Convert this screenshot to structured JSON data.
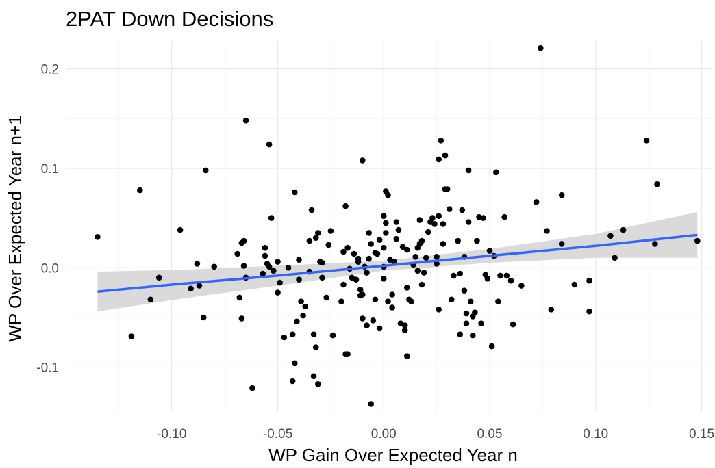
{
  "chart_data": {
    "type": "scatter",
    "title": "2PAT Down Decisions",
    "xlabel": "WP Gain Over Expected Year n",
    "ylabel": "WP Over Expected Year n+1",
    "xlim": [
      -0.15,
      0.155
    ],
    "ylim": [
      -0.145,
      0.228
    ],
    "x_ticks": [
      -0.1,
      -0.05,
      0.0,
      0.05,
      0.1,
      0.15
    ],
    "x_tick_labels": [
      "-0.10",
      "-0.05",
      "0.00",
      "0.05",
      "0.10",
      "0.15"
    ],
    "y_ticks": [
      -0.1,
      0.0,
      0.1,
      0.2
    ],
    "y_tick_labels": [
      "-0.1",
      "0.0",
      "0.1",
      "0.2"
    ],
    "point_color": "#000000",
    "fit_line": {
      "method": "linear",
      "color": "#3366ff",
      "band_color": "#d3d3d3",
      "x": [
        -0.135,
        -0.095,
        -0.05,
        0.0,
        0.05,
        0.1,
        0.148
      ],
      "y": [
        -0.024,
        -0.016,
        -0.008,
        0.002,
        0.012,
        0.022,
        0.033
      ],
      "ci_lower": [
        -0.044,
        -0.031,
        -0.018,
        -0.003,
        0.005,
        0.01,
        0.01
      ],
      "ci_upper": [
        -0.004,
        -0.002,
        0.002,
        0.007,
        0.019,
        0.034,
        0.056
      ]
    },
    "points": [
      [
        -0.135,
        0.031
      ],
      [
        -0.119,
        -0.069
      ],
      [
        -0.115,
        0.078
      ],
      [
        -0.11,
        -0.032
      ],
      [
        -0.106,
        -0.01
      ],
      [
        -0.096,
        0.038
      ],
      [
        -0.091,
        -0.021
      ],
      [
        -0.088,
        0.004
      ],
      [
        -0.087,
        -0.018
      ],
      [
        -0.085,
        -0.05
      ],
      [
        -0.084,
        0.098
      ],
      [
        -0.08,
        0.001
      ],
      [
        -0.069,
        0.014
      ],
      [
        -0.068,
        -0.03
      ],
      [
        -0.067,
        0.025
      ],
      [
        -0.067,
        -0.051
      ],
      [
        -0.066,
        0.027
      ],
      [
        -0.066,
        0.002
      ],
      [
        -0.065,
        -0.01
      ],
      [
        -0.065,
        0.148
      ],
      [
        -0.062,
        -0.121
      ],
      [
        -0.057,
        -0.006
      ],
      [
        -0.056,
        0.02
      ],
      [
        -0.056,
        0.012
      ],
      [
        -0.055,
        0.004
      ],
      [
        -0.054,
        0.001
      ],
      [
        -0.054,
        0.124
      ],
      [
        -0.053,
        0.05
      ],
      [
        -0.052,
        -0.003
      ],
      [
        -0.05,
        0.006
      ],
      [
        -0.05,
        -0.025
      ],
      [
        -0.049,
        -0.015
      ],
      [
        -0.047,
        -0.07
      ],
      [
        -0.045,
        0.0
      ],
      [
        -0.043,
        -0.067
      ],
      [
        -0.043,
        -0.114
      ],
      [
        -0.042,
        -0.096
      ],
      [
        -0.042,
        0.076
      ],
      [
        -0.041,
        -0.054
      ],
      [
        -0.04,
        -0.012
      ],
      [
        -0.04,
        0.008
      ],
      [
        -0.039,
        -0.034
      ],
      [
        -0.038,
        -0.048
      ],
      [
        -0.037,
        -0.039
      ],
      [
        -0.035,
        0.027
      ],
      [
        -0.035,
        -0.004
      ],
      [
        -0.034,
        0.058
      ],
      [
        -0.033,
        -0.109
      ],
      [
        -0.033,
        -0.067
      ],
      [
        -0.032,
        -0.08
      ],
      [
        -0.032,
        0.03
      ],
      [
        -0.031,
        0.035
      ],
      [
        -0.031,
        -0.117
      ],
      [
        -0.03,
        0.006
      ],
      [
        -0.029,
        0.005
      ],
      [
        -0.029,
        -0.01
      ],
      [
        -0.027,
        -0.03
      ],
      [
        -0.026,
        0.023
      ],
      [
        -0.025,
        0.037
      ],
      [
        -0.024,
        -0.068
      ],
      [
        -0.02,
        -0.034
      ],
      [
        -0.019,
        -0.017
      ],
      [
        -0.019,
        0.016
      ],
      [
        -0.018,
        0.062
      ],
      [
        -0.018,
        -0.087
      ],
      [
        -0.017,
        0.02
      ],
      [
        -0.017,
        -0.087
      ],
      [
        -0.016,
        -0.001
      ],
      [
        -0.015,
        -0.01
      ],
      [
        -0.014,
        0.014
      ],
      [
        -0.013,
        -0.012
      ],
      [
        -0.012,
        0.006
      ],
      [
        -0.012,
        0.009
      ],
      [
        -0.011,
        -0.022
      ],
      [
        -0.011,
        -0.028
      ],
      [
        -0.01,
        -0.051
      ],
      [
        -0.01,
        -0.027
      ],
      [
        -0.01,
        0.108
      ],
      [
        -0.009,
        0.001
      ],
      [
        -0.008,
        -0.005
      ],
      [
        -0.008,
        -0.058
      ],
      [
        -0.007,
        0.009
      ],
      [
        -0.007,
        0.035
      ],
      [
        -0.006,
        -0.137
      ],
      [
        -0.006,
        0.024
      ],
      [
        -0.005,
        -0.053
      ],
      [
        -0.004,
        -0.032
      ],
      [
        -0.004,
        0.015
      ],
      [
        -0.003,
        0.014
      ],
      [
        -0.002,
        -0.061
      ],
      [
        -0.002,
        0.028
      ],
      [
        0.0,
        -0.011
      ],
      [
        0.0,
        0.02
      ],
      [
        0.0,
        0.052
      ],
      [
        0.0,
        0.001
      ],
      [
        0.001,
        0.035
      ],
      [
        0.001,
        0.045
      ],
      [
        0.001,
        0.077
      ],
      [
        0.002,
        0.073
      ],
      [
        0.002,
        -0.034
      ],
      [
        0.003,
        0.008
      ],
      [
        0.004,
        -0.027
      ],
      [
        0.004,
        -0.04
      ],
      [
        0.005,
        0.006
      ],
      [
        0.006,
        0.029
      ],
      [
        0.006,
        0.046
      ],
      [
        0.007,
        0.038
      ],
      [
        0.008,
        -0.056
      ],
      [
        0.009,
        0.021
      ],
      [
        0.01,
        -0.063
      ],
      [
        0.01,
        -0.058
      ],
      [
        0.011,
        -0.02
      ],
      [
        0.011,
        0.018
      ],
      [
        0.011,
        -0.089
      ],
      [
        0.012,
        -0.032
      ],
      [
        0.013,
        -0.034
      ],
      [
        0.014,
        0.003
      ],
      [
        0.015,
        0.011
      ],
      [
        0.016,
        0.02
      ],
      [
        0.016,
        -0.003
      ],
      [
        0.017,
        0.048
      ],
      [
        0.017,
        0.024
      ],
      [
        0.018,
        0.027
      ],
      [
        0.018,
        -0.017
      ],
      [
        0.019,
        -0.005
      ],
      [
        0.02,
        0.01
      ],
      [
        0.021,
        0.036
      ],
      [
        0.022,
        0.046
      ],
      [
        0.023,
        0.05
      ],
      [
        0.024,
        0.044
      ],
      [
        0.025,
        0.011
      ],
      [
        0.025,
        0.004
      ],
      [
        0.026,
        -0.042
      ],
      [
        0.026,
        0.052
      ],
      [
        0.026,
        0.109
      ],
      [
        0.027,
        0.128
      ],
      [
        0.028,
        0.044
      ],
      [
        0.028,
        0.024
      ],
      [
        0.029,
        0.079
      ],
      [
        0.029,
        0.113
      ],
      [
        0.03,
        0.079
      ],
      [
        0.031,
        0.059
      ],
      [
        0.032,
        -0.032
      ],
      [
        0.033,
        -0.008
      ],
      [
        0.035,
        0.027
      ],
      [
        0.036,
        -0.067
      ],
      [
        0.036,
        -0.006
      ],
      [
        0.037,
        0.058
      ],
      [
        0.038,
        0.011
      ],
      [
        0.038,
        -0.023
      ],
      [
        0.039,
        -0.046
      ],
      [
        0.039,
        -0.056
      ],
      [
        0.04,
        0.098
      ],
      [
        0.04,
        0.046
      ],
      [
        0.041,
        -0.034
      ],
      [
        0.042,
        -0.068
      ],
      [
        0.042,
        -0.049
      ],
      [
        0.043,
        -0.045
      ],
      [
        0.044,
        0.027
      ],
      [
        0.045,
        0.051
      ],
      [
        0.046,
        -0.056
      ],
      [
        0.047,
        0.05
      ],
      [
        0.048,
        -0.007
      ],
      [
        0.049,
        -0.011
      ],
      [
        0.05,
        0.017
      ],
      [
        0.051,
        -0.079
      ],
      [
        0.052,
        0.012
      ],
      [
        0.053,
        0.096
      ],
      [
        0.054,
        -0.034
      ],
      [
        0.055,
        -0.008
      ],
      [
        0.057,
        0.051
      ],
      [
        0.058,
        -0.008
      ],
      [
        0.06,
        -0.013
      ],
      [
        0.061,
        -0.057
      ],
      [
        0.065,
        -0.018
      ],
      [
        0.072,
        0.066
      ],
      [
        0.074,
        0.221
      ],
      [
        0.077,
        0.037
      ],
      [
        0.079,
        -0.042
      ],
      [
        0.084,
        0.073
      ],
      [
        0.084,
        0.024
      ],
      [
        0.09,
        -0.017
      ],
      [
        0.097,
        -0.013
      ],
      [
        0.097,
        -0.044
      ],
      [
        0.107,
        0.032
      ],
      [
        0.109,
        0.01
      ],
      [
        0.113,
        0.038
      ],
      [
        0.124,
        0.128
      ],
      [
        0.128,
        0.024
      ],
      [
        0.129,
        0.084
      ],
      [
        0.148,
        0.027
      ]
    ]
  }
}
